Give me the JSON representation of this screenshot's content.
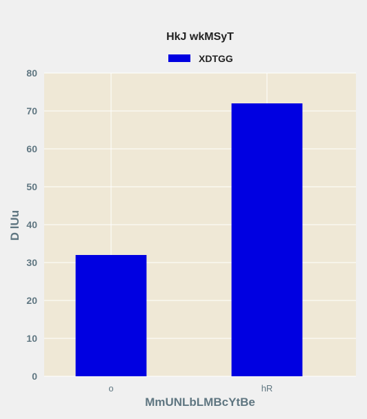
{
  "chart_data": {
    "type": "bar",
    "title": "HkJ wkMSyT",
    "xlabel": "MmUNLbLMBcYtBe",
    "ylabel": "D lUu",
    "categories": [
      "o",
      "hR"
    ],
    "series": [
      {
        "name": "XDTGG",
        "values": [
          32,
          72
        ],
        "color": "#0000e1"
      }
    ],
    "ylim": [
      0,
      80
    ],
    "yticks": [
      0,
      10,
      20,
      30,
      40,
      50,
      60,
      70,
      80
    ],
    "grid": true,
    "legend": "top-center",
    "colors": {
      "plot_background": "#efe8d6",
      "figure_background": "#f0f0f0",
      "grid": "#ffffff",
      "axis_text": "#5f7681"
    }
  }
}
